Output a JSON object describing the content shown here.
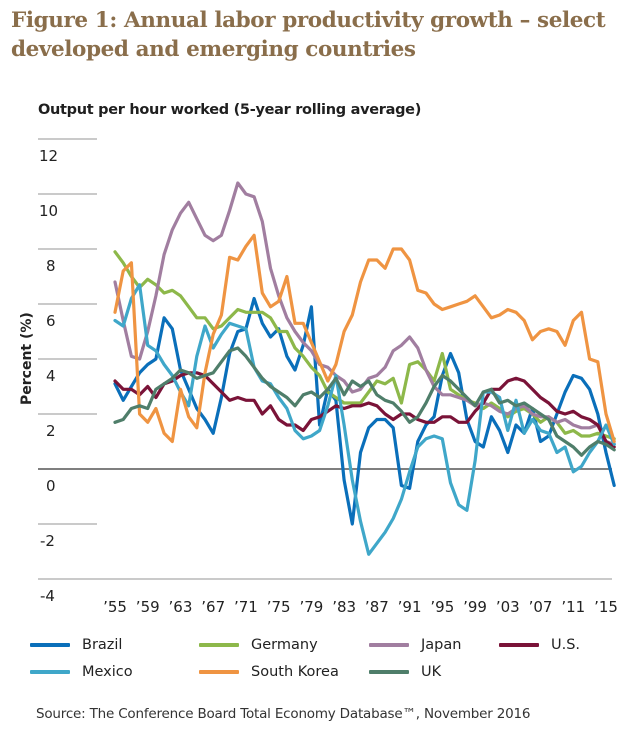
{
  "figure": {
    "title": "Figure 1: Annual labor productivity growth – select developed and emerging countries",
    "subtitle": "Output per hour worked (5-year rolling average)",
    "source": "Source: The Conference Board Total Economy Database™, November 2016"
  },
  "chart_data": {
    "type": "line",
    "title": "Figure 1: Annual labor productivity growth – select developed and emerging countries",
    "subtitle": "Output per hour worked (5-year rolling average)",
    "xlabel": "",
    "ylabel": "Percent (%)",
    "ylim": [
      -4,
      12
    ],
    "yticks": [
      -4,
      -2,
      0,
      2,
      4,
      6,
      8,
      10,
      12
    ],
    "ytick_labels": [
      "-4",
      "-2",
      "0",
      "2",
      "4",
      "6",
      "8",
      "10",
      "12"
    ],
    "xlim": [
      1955,
      2016
    ],
    "xticks": [
      1955,
      1959,
      1963,
      1967,
      1971,
      1975,
      1979,
      1983,
      1987,
      1991,
      1995,
      1999,
      2003,
      2007,
      2011,
      2015
    ],
    "xtick_labels": [
      "’55",
      "’59",
      "’63",
      "’67",
      "’71",
      "’75",
      "’79",
      "’83",
      "’87",
      "’91",
      "’95",
      "’99",
      "’03",
      "’07",
      "’11",
      "’15"
    ],
    "grid": "y-ticks-left-only",
    "legend_position": "bottom",
    "x": [
      1955,
      1956,
      1957,
      1958,
      1959,
      1960,
      1961,
      1962,
      1963,
      1964,
      1965,
      1966,
      1967,
      1968,
      1969,
      1970,
      1971,
      1972,
      1973,
      1974,
      1975,
      1976,
      1977,
      1978,
      1979,
      1980,
      1981,
      1982,
      1983,
      1984,
      1985,
      1986,
      1987,
      1988,
      1989,
      1990,
      1991,
      1992,
      1993,
      1994,
      1995,
      1996,
      1997,
      1998,
      1999,
      2000,
      2001,
      2002,
      2003,
      2004,
      2005,
      2006,
      2007,
      2008,
      2009,
      2010,
      2011,
      2012,
      2013,
      2014,
      2015,
      2016
    ],
    "series": [
      {
        "name": "Brazil",
        "color": "#0a6fba",
        "values": [
          3.1,
          2.5,
          3.0,
          3.5,
          3.8,
          4.0,
          5.5,
          5.1,
          3.6,
          2.9,
          2.2,
          1.8,
          1.3,
          2.6,
          4.2,
          5.0,
          5.1,
          6.2,
          5.3,
          4.8,
          5.1,
          4.1,
          3.6,
          4.5,
          5.9,
          1.6,
          2.9,
          2.5,
          -0.4,
          -2.0,
          0.6,
          1.5,
          1.8,
          1.8,
          1.5,
          -0.6,
          -0.7,
          1.0,
          1.6,
          1.9,
          3.4,
          4.2,
          3.5,
          1.8,
          1.0,
          0.8,
          1.9,
          1.4,
          0.6,
          1.6,
          1.3,
          2.2,
          1.0,
          1.2,
          2.0,
          2.8,
          3.4,
          3.3,
          2.9,
          2.0,
          0.6,
          -0.6
        ]
      },
      {
        "name": "Germany",
        "color": "#8db84a",
        "values": [
          7.9,
          7.5,
          7.0,
          6.6,
          6.9,
          6.7,
          6.4,
          6.5,
          6.3,
          5.9,
          5.5,
          5.5,
          5.1,
          5.2,
          5.5,
          5.8,
          5.7,
          5.7,
          5.7,
          5.5,
          5.0,
          5.0,
          4.4,
          4.1,
          3.7,
          3.4,
          2.8,
          2.6,
          2.4,
          2.4,
          2.4,
          2.8,
          3.2,
          3.1,
          3.3,
          2.4,
          3.8,
          3.9,
          3.6,
          3.2,
          4.2,
          2.9,
          2.7,
          2.5,
          2.4,
          2.2,
          2.4,
          2.2,
          1.9,
          2.1,
          2.2,
          2.0,
          1.7,
          1.9,
          1.7,
          1.3,
          1.4,
          1.2,
          1.2,
          1.3,
          1.2,
          1.1
        ]
      },
      {
        "name": "Japan",
        "color": "#a17ea0",
        "values": [
          6.8,
          5.4,
          4.1,
          4.0,
          5.0,
          6.3,
          7.8,
          8.7,
          9.3,
          9.7,
          9.1,
          8.5,
          8.3,
          8.5,
          9.4,
          10.4,
          10.0,
          9.9,
          9.0,
          7.3,
          6.3,
          5.5,
          5.0,
          4.6,
          4.3,
          3.8,
          3.7,
          3.4,
          3.2,
          2.8,
          2.9,
          3.3,
          3.4,
          3.7,
          4.3,
          4.5,
          4.8,
          4.4,
          3.6,
          3.0,
          2.7,
          2.7,
          2.6,
          2.5,
          2.3,
          2.4,
          2.3,
          2.1,
          2.0,
          2.2,
          2.3,
          2.0,
          1.9,
          1.9,
          1.7,
          1.8,
          1.6,
          1.5,
          1.5,
          1.6,
          1.0,
          0.9
        ]
      },
      {
        "name": "U.S.",
        "color": "#7a1338",
        "values": [
          3.2,
          2.9,
          2.9,
          2.7,
          3.0,
          2.6,
          3.1,
          3.2,
          3.4,
          3.5,
          3.5,
          3.4,
          3.1,
          2.8,
          2.5,
          2.6,
          2.5,
          2.5,
          2.0,
          2.3,
          1.8,
          1.6,
          1.6,
          1.4,
          1.8,
          1.9,
          2.1,
          2.3,
          2.2,
          2.3,
          2.3,
          2.4,
          2.3,
          2.0,
          1.8,
          2.0,
          2.0,
          1.8,
          1.7,
          1.7,
          1.9,
          1.9,
          1.7,
          1.7,
          2.1,
          2.4,
          2.9,
          2.9,
          3.2,
          3.3,
          3.2,
          2.9,
          2.6,
          2.4,
          2.1,
          2.0,
          2.1,
          1.9,
          1.8,
          1.6,
          1.0,
          0.8
        ]
      },
      {
        "name": "Mexico",
        "color": "#3fa7c9",
        "values": [
          5.4,
          5.2,
          6.2,
          6.7,
          4.5,
          4.3,
          3.8,
          3.4,
          2.8,
          2.3,
          4.1,
          5.2,
          4.4,
          4.9,
          5.3,
          5.2,
          5.1,
          3.7,
          3.2,
          3.1,
          2.6,
          2.2,
          1.4,
          1.1,
          1.2,
          1.4,
          2.3,
          3.4,
          1.6,
          -0.4,
          -1.9,
          -3.1,
          -2.7,
          -2.3,
          -1.8,
          -1.1,
          -0.1,
          0.8,
          1.1,
          1.2,
          1.1,
          -0.5,
          -1.3,
          -1.5,
          0.3,
          2.8,
          2.8,
          2.6,
          1.4,
          2.5,
          1.3,
          1.8,
          1.4,
          1.3,
          0.6,
          0.8,
          -0.1,
          0.1,
          0.6,
          1.0,
          1.6,
          0.9
        ]
      },
      {
        "name": "South Korea",
        "color": "#ef9442",
        "values": [
          5.7,
          7.2,
          7.5,
          2.0,
          1.7,
          2.2,
          1.3,
          1.0,
          2.9,
          1.9,
          1.5,
          3.5,
          4.9,
          5.6,
          7.7,
          7.6,
          8.1,
          8.5,
          6.4,
          5.9,
          6.1,
          7.0,
          5.3,
          5.3,
          4.6,
          3.9,
          3.2,
          3.8,
          5.0,
          5.6,
          6.8,
          7.6,
          7.6,
          7.3,
          8.0,
          8.0,
          7.6,
          6.5,
          6.4,
          6.0,
          5.8,
          5.9,
          6.0,
          6.1,
          6.3,
          5.9,
          5.5,
          5.6,
          5.8,
          5.7,
          5.4,
          4.7,
          5.0,
          5.1,
          5.0,
          4.5,
          5.4,
          5.7,
          4.0,
          3.9,
          2.0,
          1.0
        ]
      },
      {
        "name": "UK",
        "color": "#4f7e6a",
        "values": [
          1.7,
          1.8,
          2.2,
          2.3,
          2.2,
          2.9,
          3.1,
          3.3,
          3.6,
          3.5,
          3.3,
          3.4,
          3.5,
          3.9,
          4.3,
          4.4,
          4.1,
          3.7,
          3.3,
          3.0,
          2.8,
          2.6,
          2.3,
          2.7,
          2.8,
          2.6,
          2.9,
          3.3,
          2.7,
          3.2,
          3.0,
          3.2,
          2.7,
          2.5,
          2.4,
          2.1,
          1.7,
          1.9,
          2.4,
          3.0,
          3.4,
          3.2,
          2.9,
          2.6,
          2.3,
          2.8,
          2.9,
          2.4,
          2.5,
          2.3,
          2.4,
          2.2,
          2.0,
          1.8,
          1.2,
          1.0,
          0.8,
          0.5,
          0.8,
          1.0,
          0.9,
          0.7
        ]
      }
    ]
  },
  "legend": {
    "items": [
      {
        "label": "Brazil",
        "color": "#0a6fba"
      },
      {
        "label": "Germany",
        "color": "#8db84a"
      },
      {
        "label": "Japan",
        "color": "#a17ea0"
      },
      {
        "label": "U.S.",
        "color": "#7a1338"
      },
      {
        "label": "Mexico",
        "color": "#3fa7c9"
      },
      {
        "label": "South Korea",
        "color": "#ef9442"
      },
      {
        "label": "UK",
        "color": "#4f7e6a"
      }
    ]
  }
}
